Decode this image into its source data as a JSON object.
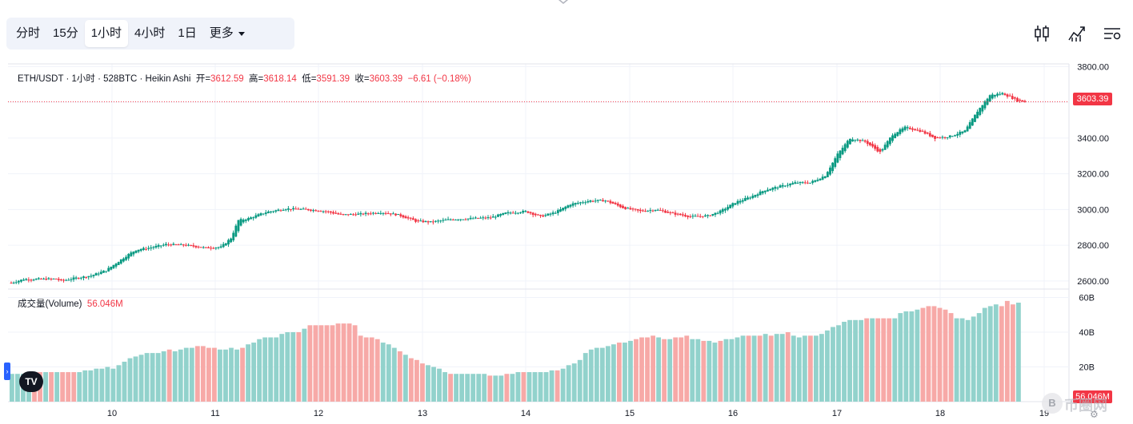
{
  "toolbar": {
    "tabs": [
      {
        "label": "分时",
        "active": false
      },
      {
        "label": "15分",
        "active": false
      },
      {
        "label": "1小时",
        "active": true
      },
      {
        "label": "4小时",
        "active": false
      },
      {
        "label": "1日",
        "active": false
      }
    ],
    "more_label": "更多"
  },
  "legend": {
    "symbol": "ETH/USDT · 1小时 · 528BTC · Heikin Ashi",
    "open_label": "开=",
    "open": "3612.59",
    "high_label": "高=",
    "high": "3618.14",
    "low_label": "低=",
    "low": "3591.39",
    "close_label": "收=",
    "close": "3603.39",
    "change": "−6.61 (−0.18%)"
  },
  "volume_legend": {
    "label": "成交量(Volume)",
    "value": "56.046M"
  },
  "last_price_label": "3603.39",
  "last_volume_label": "56.046M",
  "logo_text": "TV",
  "badge_text": "B",
  "watermark_text": "币圈网",
  "colors": {
    "up": "#089981",
    "down": "#f23645",
    "up_volume": "#92d2cc",
    "down_volume": "#f7a9a7",
    "grid": "#f0f3fa",
    "axis_text": "#131722"
  },
  "chart_data": [
    {
      "type": "candlestick",
      "title": "ETH/USDT · 1小时 · 528BTC · Heikin Ashi",
      "style": "Heikin Ashi",
      "x_tick_labels": [
        "10",
        "11",
        "12",
        "13",
        "14",
        "15",
        "16",
        "17",
        "18",
        "19"
      ],
      "y_tick_labels": [
        "3800.00",
        "3600.00",
        "3400.00",
        "3200.00",
        "3000.00",
        "2800.00",
        "2600.00"
      ],
      "ylim": [
        2555,
        3815
      ],
      "last_price": 3603.39,
      "price_path_keypoints": [
        [
          0,
          2590
        ],
        [
          5,
          2610
        ],
        [
          18,
          2612
        ],
        [
          20,
          2600
        ],
        [
          25,
          2615
        ],
        [
          32,
          2630
        ],
        [
          38,
          2660
        ],
        [
          46,
          2740
        ],
        [
          50,
          2775
        ],
        [
          55,
          2785
        ],
        [
          62,
          2805
        ],
        [
          70,
          2800
        ],
        [
          78,
          2785
        ],
        [
          84,
          2790
        ],
        [
          88,
          2840
        ],
        [
          91,
          2940
        ],
        [
          95,
          2950
        ],
        [
          102,
          2985
        ],
        [
          110,
          3005
        ],
        [
          118,
          3000
        ],
        [
          126,
          2990
        ],
        [
          132,
          2970
        ],
        [
          140,
          2975
        ],
        [
          148,
          2985
        ],
        [
          155,
          2970
        ],
        [
          162,
          2935
        ],
        [
          168,
          2930
        ],
        [
          176,
          2945
        ],
        [
          184,
          2950
        ],
        [
          192,
          2955
        ],
        [
          198,
          2980
        ],
        [
          206,
          2990
        ],
        [
          212,
          2960
        ],
        [
          218,
          2985
        ],
        [
          224,
          3030
        ],
        [
          232,
          3050
        ],
        [
          238,
          3050
        ],
        [
          245,
          3010
        ],
        [
          252,
          2990
        ],
        [
          258,
          3000
        ],
        [
          264,
          2980
        ],
        [
          272,
          2960
        ],
        [
          279,
          2965
        ],
        [
          284,
          2990
        ],
        [
          290,
          3040
        ],
        [
          296,
          3070
        ],
        [
          302,
          3110
        ],
        [
          308,
          3130
        ],
        [
          314,
          3150
        ],
        [
          320,
          3150
        ],
        [
          326,
          3190
        ],
        [
          331,
          3310
        ],
        [
          336,
          3400
        ],
        [
          342,
          3380
        ],
        [
          348,
          3320
        ],
        [
          353,
          3420
        ],
        [
          358,
          3460
        ],
        [
          364,
          3440
        ],
        [
          370,
          3400
        ],
        [
          376,
          3410
        ],
        [
          382,
          3440
        ],
        [
          387,
          3550
        ],
        [
          392,
          3640
        ],
        [
          397,
          3650
        ],
        [
          403,
          3610
        ],
        [
          406,
          3603
        ]
      ],
      "candle_count": 407
    },
    {
      "type": "bar",
      "title": "成交量(Volume)",
      "unit": "B",
      "y_tick_labels": [
        "60B",
        "40B",
        "20B"
      ],
      "ylim": [
        0,
        63
      ],
      "last_value_label": "56.046M",
      "bars": [
        {
          "v": 16,
          "d": false
        },
        {
          "v": 16,
          "d": false
        },
        {
          "v": 16,
          "d": false
        },
        {
          "v": 17,
          "d": false
        },
        {
          "v": 17,
          "d": true
        },
        {
          "v": 17,
          "d": true
        },
        {
          "v": 17,
          "d": false
        },
        {
          "v": 17,
          "d": true
        },
        {
          "v": 17,
          "d": false
        },
        {
          "v": 17,
          "d": true
        },
        {
          "v": 17,
          "d": true
        },
        {
          "v": 17,
          "d": true
        },
        {
          "v": 17,
          "d": false
        },
        {
          "v": 18,
          "d": false
        },
        {
          "v": 18,
          "d": false
        },
        {
          "v": 19,
          "d": false
        },
        {
          "v": 19,
          "d": false
        },
        {
          "v": 20,
          "d": false
        },
        {
          "v": 19,
          "d": false
        },
        {
          "v": 21,
          "d": false
        },
        {
          "v": 23,
          "d": false
        },
        {
          "v": 25,
          "d": false
        },
        {
          "v": 26,
          "d": false
        },
        {
          "v": 27,
          "d": false
        },
        {
          "v": 28,
          "d": false
        },
        {
          "v": 28,
          "d": false
        },
        {
          "v": 28,
          "d": false
        },
        {
          "v": 29,
          "d": false
        },
        {
          "v": 30,
          "d": true
        },
        {
          "v": 29,
          "d": false
        },
        {
          "v": 30,
          "d": false
        },
        {
          "v": 31,
          "d": false
        },
        {
          "v": 31,
          "d": false
        },
        {
          "v": 32,
          "d": true
        },
        {
          "v": 32,
          "d": true
        },
        {
          "v": 31,
          "d": true
        },
        {
          "v": 31,
          "d": true
        },
        {
          "v": 30,
          "d": false
        },
        {
          "v": 30,
          "d": false
        },
        {
          "v": 31,
          "d": false
        },
        {
          "v": 30,
          "d": false
        },
        {
          "v": 31,
          "d": true
        },
        {
          "v": 33,
          "d": false
        },
        {
          "v": 34,
          "d": false
        },
        {
          "v": 36,
          "d": false
        },
        {
          "v": 37,
          "d": false
        },
        {
          "v": 37,
          "d": false
        },
        {
          "v": 37,
          "d": false
        },
        {
          "v": 39,
          "d": false
        },
        {
          "v": 40,
          "d": false
        },
        {
          "v": 40,
          "d": false
        },
        {
          "v": 40,
          "d": true
        },
        {
          "v": 42,
          "d": false
        },
        {
          "v": 44,
          "d": true
        },
        {
          "v": 44,
          "d": true
        },
        {
          "v": 44,
          "d": true
        },
        {
          "v": 44,
          "d": true
        },
        {
          "v": 44,
          "d": true
        },
        {
          "v": 45,
          "d": true
        },
        {
          "v": 45,
          "d": true
        },
        {
          "v": 45,
          "d": true
        },
        {
          "v": 44,
          "d": true
        },
        {
          "v": 38,
          "d": true
        },
        {
          "v": 37,
          "d": true
        },
        {
          "v": 37,
          "d": true
        },
        {
          "v": 36,
          "d": true
        },
        {
          "v": 34,
          "d": false
        },
        {
          "v": 33,
          "d": false
        },
        {
          "v": 31,
          "d": false
        },
        {
          "v": 29,
          "d": true
        },
        {
          "v": 27,
          "d": false
        },
        {
          "v": 25,
          "d": true
        },
        {
          "v": 24,
          "d": true
        },
        {
          "v": 22,
          "d": true
        },
        {
          "v": 21,
          "d": false
        },
        {
          "v": 20,
          "d": false
        },
        {
          "v": 19,
          "d": false
        },
        {
          "v": 17,
          "d": false
        },
        {
          "v": 16,
          "d": true
        },
        {
          "v": 16,
          "d": false
        },
        {
          "v": 16,
          "d": false
        },
        {
          "v": 16,
          "d": false
        },
        {
          "v": 16,
          "d": false
        },
        {
          "v": 16,
          "d": false
        },
        {
          "v": 16,
          "d": false
        },
        {
          "v": 15,
          "d": true
        },
        {
          "v": 15,
          "d": false
        },
        {
          "v": 15,
          "d": false
        },
        {
          "v": 16,
          "d": true
        },
        {
          "v": 16,
          "d": false
        },
        {
          "v": 17,
          "d": false
        },
        {
          "v": 17,
          "d": true
        },
        {
          "v": 17,
          "d": false
        },
        {
          "v": 17,
          "d": false
        },
        {
          "v": 17,
          "d": false
        },
        {
          "v": 17,
          "d": false
        },
        {
          "v": 18,
          "d": false
        },
        {
          "v": 18,
          "d": true
        },
        {
          "v": 19,
          "d": false
        },
        {
          "v": 21,
          "d": false
        },
        {
          "v": 22,
          "d": false
        },
        {
          "v": 24,
          "d": false
        },
        {
          "v": 28,
          "d": false
        },
        {
          "v": 30,
          "d": false
        },
        {
          "v": 31,
          "d": false
        },
        {
          "v": 31,
          "d": false
        },
        {
          "v": 32,
          "d": false
        },
        {
          "v": 33,
          "d": false
        },
        {
          "v": 34,
          "d": true
        },
        {
          "v": 34,
          "d": false
        },
        {
          "v": 35,
          "d": false
        },
        {
          "v": 36,
          "d": true
        },
        {
          "v": 37,
          "d": true
        },
        {
          "v": 37,
          "d": true
        },
        {
          "v": 38,
          "d": true
        },
        {
          "v": 37,
          "d": false
        },
        {
          "v": 36,
          "d": true
        },
        {
          "v": 36,
          "d": false
        },
        {
          "v": 37,
          "d": true
        },
        {
          "v": 37,
          "d": true
        },
        {
          "v": 38,
          "d": true
        },
        {
          "v": 36,
          "d": false
        },
        {
          "v": 36,
          "d": false
        },
        {
          "v": 35,
          "d": true
        },
        {
          "v": 35,
          "d": false
        },
        {
          "v": 34,
          "d": false
        },
        {
          "v": 35,
          "d": true
        },
        {
          "v": 36,
          "d": false
        },
        {
          "v": 36,
          "d": false
        },
        {
          "v": 37,
          "d": false
        },
        {
          "v": 38,
          "d": false
        },
        {
          "v": 38,
          "d": true
        },
        {
          "v": 38,
          "d": false
        },
        {
          "v": 38,
          "d": true
        },
        {
          "v": 39,
          "d": false
        },
        {
          "v": 38,
          "d": true
        },
        {
          "v": 39,
          "d": false
        },
        {
          "v": 39,
          "d": false
        },
        {
          "v": 40,
          "d": true
        },
        {
          "v": 38,
          "d": false
        },
        {
          "v": 37,
          "d": false
        },
        {
          "v": 38,
          "d": false
        },
        {
          "v": 38,
          "d": true
        },
        {
          "v": 38,
          "d": false
        },
        {
          "v": 39,
          "d": false
        },
        {
          "v": 41,
          "d": false
        },
        {
          "v": 43,
          "d": false
        },
        {
          "v": 44,
          "d": false
        },
        {
          "v": 46,
          "d": false
        },
        {
          "v": 47,
          "d": false
        },
        {
          "v": 47,
          "d": false
        },
        {
          "v": 47,
          "d": false
        },
        {
          "v": 48,
          "d": true
        },
        {
          "v": 48,
          "d": false
        },
        {
          "v": 48,
          "d": true
        },
        {
          "v": 48,
          "d": true
        },
        {
          "v": 48,
          "d": true
        },
        {
          "v": 48,
          "d": false
        },
        {
          "v": 51,
          "d": false
        },
        {
          "v": 52,
          "d": false
        },
        {
          "v": 52,
          "d": false
        },
        {
          "v": 53,
          "d": false
        },
        {
          "v": 54,
          "d": true
        },
        {
          "v": 55,
          "d": true
        },
        {
          "v": 55,
          "d": true
        },
        {
          "v": 54,
          "d": true
        },
        {
          "v": 53,
          "d": true
        },
        {
          "v": 51,
          "d": true
        },
        {
          "v": 48,
          "d": false
        },
        {
          "v": 48,
          "d": false
        },
        {
          "v": 47,
          "d": false
        },
        {
          "v": 49,
          "d": false
        },
        {
          "v": 51,
          "d": false
        },
        {
          "v": 54,
          "d": false
        },
        {
          "v": 55,
          "d": false
        },
        {
          "v": 56,
          "d": false
        },
        {
          "v": 55,
          "d": true
        },
        {
          "v": 58,
          "d": true
        },
        {
          "v": 56,
          "d": true
        },
        {
          "v": 57,
          "d": false
        }
      ]
    }
  ]
}
